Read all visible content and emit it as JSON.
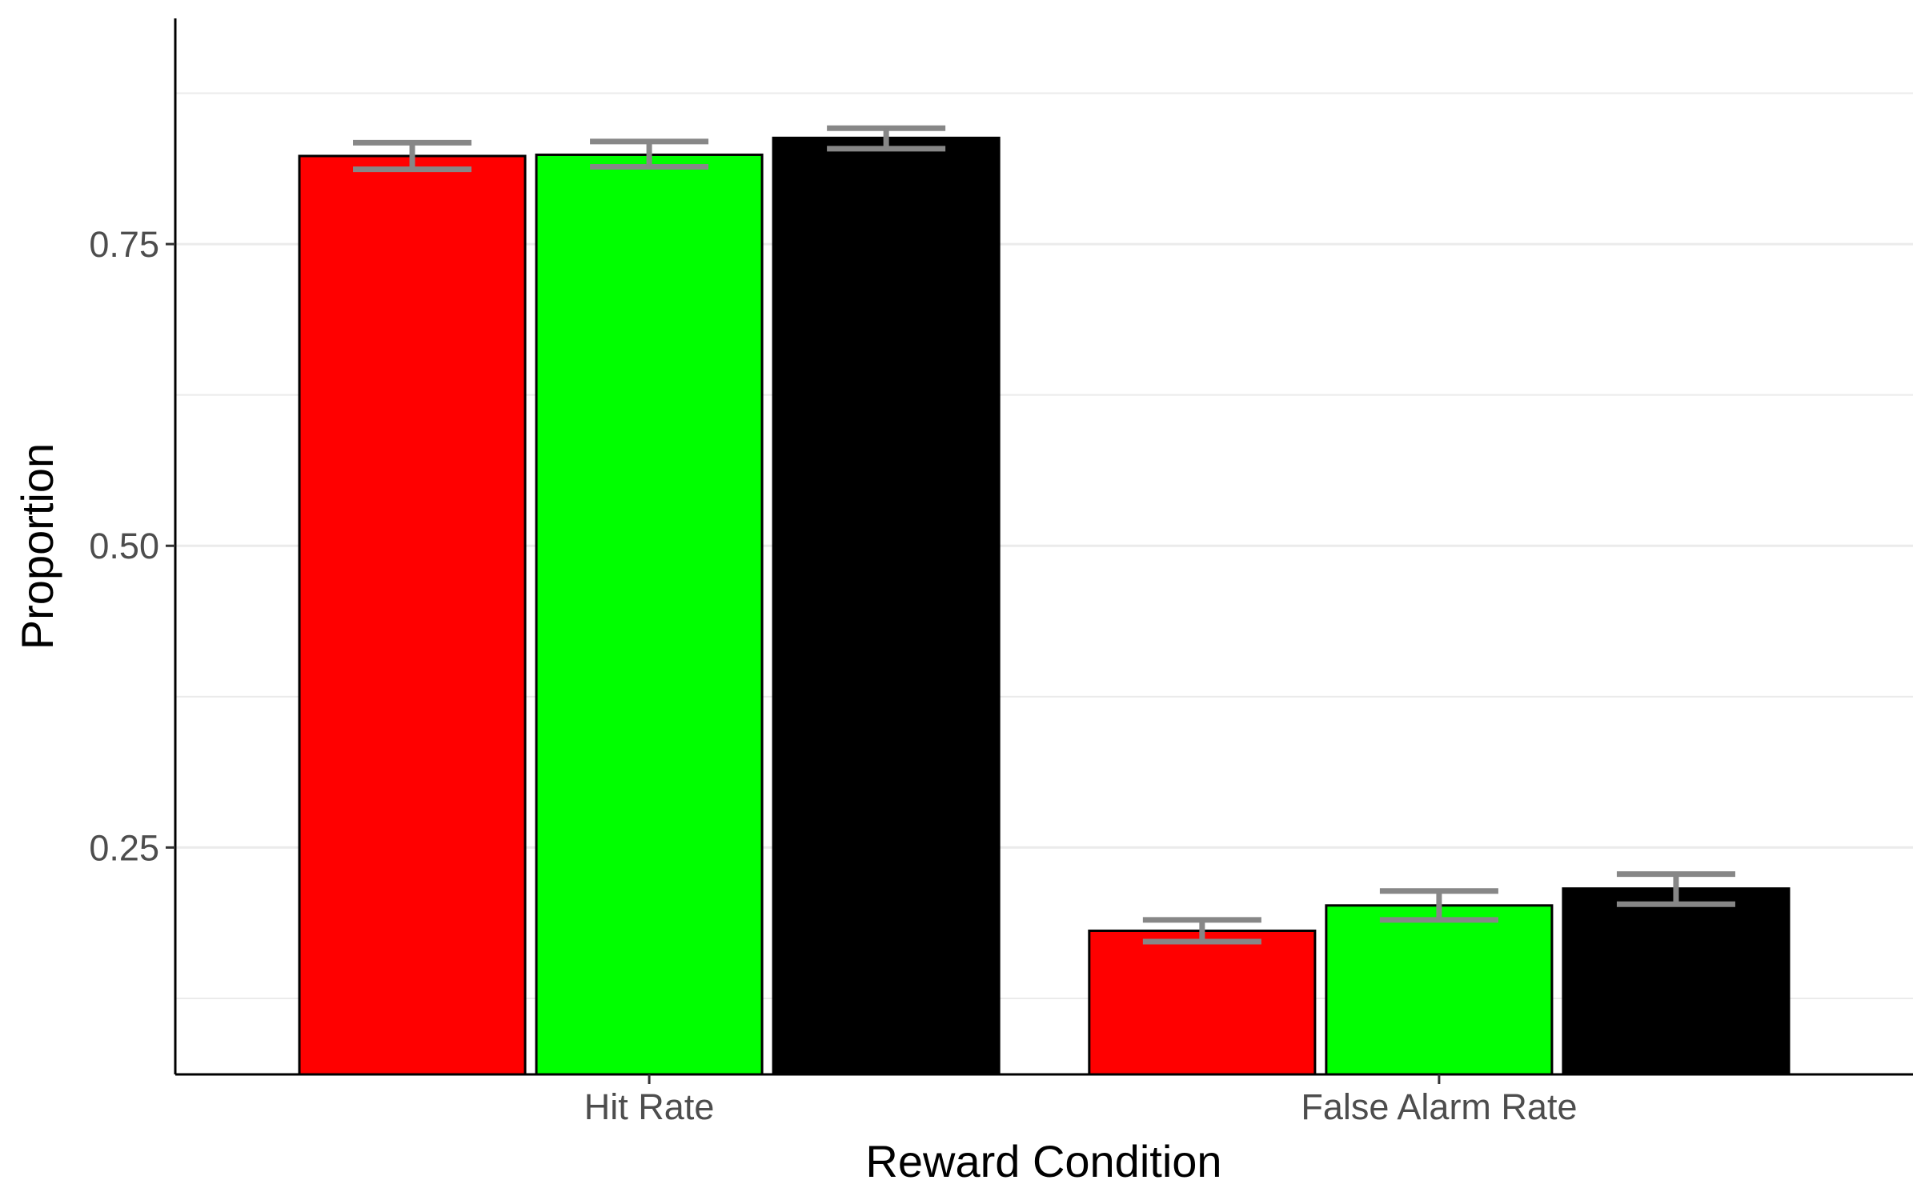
{
  "chart_data": {
    "type": "bar",
    "title": "",
    "xlabel": "Reward Condition",
    "ylabel": "Proportion",
    "categories": [
      "Hit Rate",
      "False Alarm Rate"
    ],
    "ylim": [
      0.062,
      0.937
    ],
    "y_ticks": [
      0.25,
      0.5,
      0.75
    ],
    "y_tick_labels": [
      "0.25",
      "0.50",
      "0.75"
    ],
    "grid": "horizontal major and minor",
    "legend": "none",
    "series": [
      {
        "color": "#FF0000",
        "values": [
          0.823,
          0.181
        ],
        "error_low": [
          0.812,
          0.172
        ],
        "error_high": [
          0.834,
          0.19
        ]
      },
      {
        "color": "#00FF00",
        "values": [
          0.824,
          0.202
        ],
        "error_low": [
          0.814,
          0.19
        ],
        "error_high": [
          0.835,
          0.214
        ]
      },
      {
        "color": "#000000",
        "values": [
          0.838,
          0.216
        ],
        "error_low": [
          0.829,
          0.203
        ],
        "error_high": [
          0.846,
          0.228
        ]
      }
    ],
    "error_bar_color": "#878787",
    "grid_color": "#EBEBEB"
  }
}
